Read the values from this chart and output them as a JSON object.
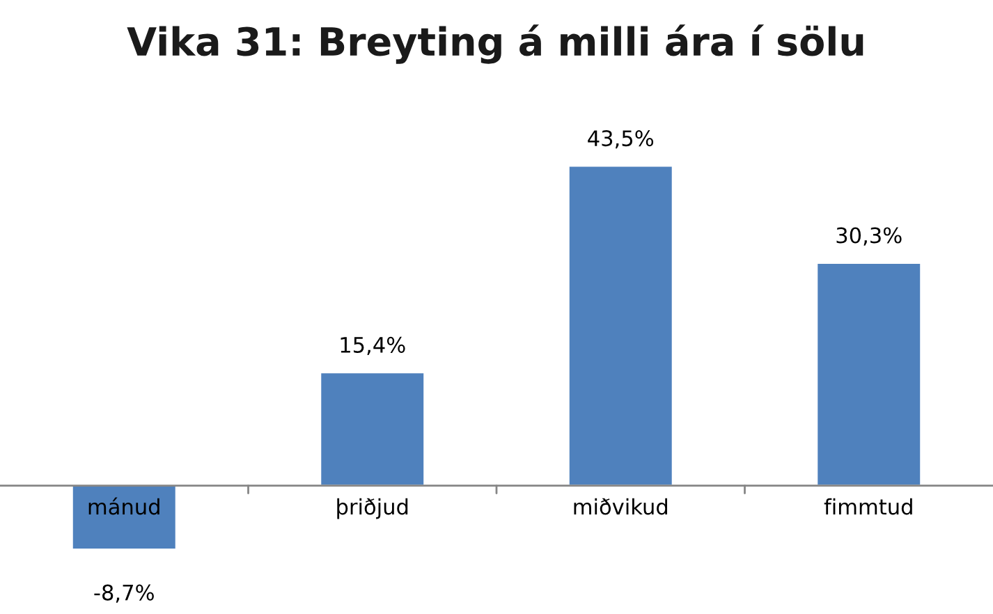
{
  "chart_data": {
    "type": "bar",
    "title": "Vika 31: Breyting á milli ára í sölu",
    "categories": [
      "mánud",
      "þriðjud",
      "miðvikud",
      "fimmtud"
    ],
    "values": [
      -8.7,
      15.4,
      43.5,
      30.3
    ],
    "value_labels": [
      "-8,7%",
      "15,4%",
      "43,5%",
      "30,3%"
    ],
    "color": "#4f81bd"
  }
}
